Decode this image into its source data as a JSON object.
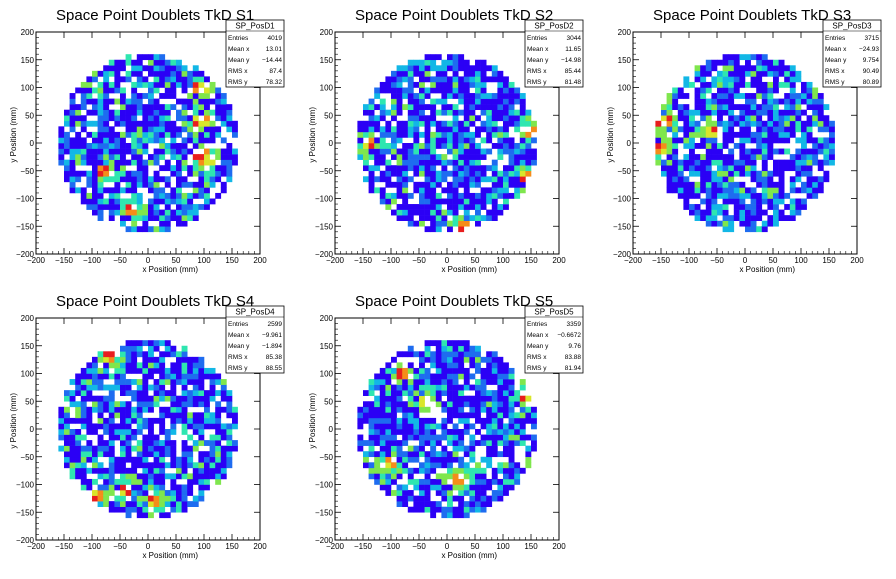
{
  "colors": {
    "background": "#ffffff",
    "frame": "#000000",
    "palette": [
      "#2b00f5",
      "#1e6cf0",
      "#12b7e6",
      "#2ee6b0",
      "#7fe64d",
      "#d9e62a",
      "#f58c1a",
      "#e81e1e"
    ]
  },
  "chart_data": [
    {
      "type": "heatmap",
      "title": "Space Point Doublets TkD S1",
      "xlabel": "x Position (mm)",
      "ylabel": "y Position (mm)",
      "xlim": [
        -200,
        200
      ],
      "ylim": [
        -200,
        200
      ],
      "bin_width": 10,
      "fill_radius": 160,
      "legend": "top-right",
      "xticks": [
        "−200",
        "−150",
        "−100",
        "−50",
        "0",
        "50",
        "100",
        "150",
        "200"
      ],
      "yticks": [
        "−200",
        "−150",
        "−100",
        "−50",
        "0",
        "50",
        "100",
        "150",
        "200"
      ],
      "stats": {
        "name": "SP_PosD1",
        "rows": [
          [
            "Entries",
            "4019"
          ],
          [
            "Mean x",
            "13.01"
          ],
          [
            "Mean y",
            "−14.44"
          ],
          [
            "RMS x",
            "87.4"
          ],
          [
            "RMS y",
            "78.32"
          ]
        ]
      },
      "hotspots": [
        {
          "x": 95,
          "y": 100
        },
        {
          "x": 95,
          "y": 40
        },
        {
          "x": 95,
          "y": -20
        },
        {
          "x": -80,
          "y": -50
        },
        {
          "x": 105,
          "y": -30
        },
        {
          "x": -30,
          "y": -120
        }
      ]
    },
    {
      "type": "heatmap",
      "title": "Space Point Doublets TkD S2",
      "xlabel": "x Position (mm)",
      "ylabel": "y Position (mm)",
      "xlim": [
        -200,
        200
      ],
      "ylim": [
        -200,
        200
      ],
      "bin_width": 10,
      "fill_radius": 160,
      "legend": "top-right",
      "xticks": [
        "−200",
        "−150",
        "−100",
        "−50",
        "0",
        "50",
        "100",
        "150",
        "200"
      ],
      "yticks": [
        "−200",
        "−150",
        "−100",
        "−50",
        "0",
        "50",
        "100",
        "150",
        "200"
      ],
      "stats": {
        "name": "SP_PosD2",
        "rows": [
          [
            "Entries",
            "3044"
          ],
          [
            "Mean x",
            "11.65"
          ],
          [
            "Mean y",
            "−14.98"
          ],
          [
            "RMS x",
            "85.44"
          ],
          [
            "RMS y",
            "81.48"
          ]
        ]
      },
      "hotspots": [
        {
          "x": 150,
          "y": 20
        },
        {
          "x": -140,
          "y": 0
        },
        {
          "x": 30,
          "y": -150
        },
        {
          "x": 140,
          "y": -60
        }
      ]
    },
    {
      "type": "heatmap",
      "title": "Space Point Doublets TkD S3",
      "xlabel": "x Position (mm)",
      "ylabel": "y Position (mm)",
      "xlim": [
        -200,
        200
      ],
      "ylim": [
        -200,
        200
      ],
      "bin_width": 10,
      "fill_radius": 160,
      "legend": "top-right",
      "xticks": [
        "−200",
        "−150",
        "−100",
        "−50",
        "0",
        "50",
        "100",
        "150",
        "200"
      ],
      "yticks": [
        "−200",
        "−150",
        "−100",
        "−50",
        "0",
        "50",
        "100",
        "150",
        "200"
      ],
      "stats": {
        "name": "SP_PosD3",
        "rows": [
          [
            "Entries",
            "3715"
          ],
          [
            "Mean x",
            "−24.93"
          ],
          [
            "Mean y",
            "9.754"
          ],
          [
            "RMS x",
            "90.49"
          ],
          [
            "RMS y",
            "80.89"
          ]
        ]
      },
      "hotspots": [
        {
          "x": -155,
          "y": -10
        },
        {
          "x": -145,
          "y": 40
        },
        {
          "x": -150,
          "y": 90
        },
        {
          "x": -60,
          "y": 20
        }
      ]
    },
    {
      "type": "heatmap",
      "title": "Space Point Doublets TkD S4",
      "xlabel": "x Position (mm)",
      "ylabel": "y Position (mm)",
      "xlim": [
        -200,
        200
      ],
      "ylim": [
        -200,
        200
      ],
      "bin_width": 10,
      "fill_radius": 160,
      "legend": "top-right",
      "xticks": [
        "−200",
        "−150",
        "−100",
        "−50",
        "0",
        "50",
        "100",
        "150",
        "200"
      ],
      "yticks": [
        "−200",
        "−150",
        "−100",
        "−50",
        "0",
        "50",
        "100",
        "150",
        "200"
      ],
      "stats": {
        "name": "SP_PosD4",
        "rows": [
          [
            "Entries",
            "2599"
          ],
          [
            "Mean x",
            "−9.961"
          ],
          [
            "Mean y",
            "−1.894"
          ],
          [
            "RMS x",
            "85.38"
          ],
          [
            "RMS y",
            "88.55"
          ]
        ]
      },
      "hotspots": [
        {
          "x": -95,
          "y": -120
        },
        {
          "x": -40,
          "y": -110
        },
        {
          "x": -70,
          "y": 130
        },
        {
          "x": 10,
          "y": -130
        }
      ]
    },
    {
      "type": "heatmap",
      "title": "Space Point Doublets TkD S5",
      "xlabel": "x Position (mm)",
      "ylabel": "y Position (mm)",
      "xlim": [
        -200,
        200
      ],
      "ylim": [
        -200,
        200
      ],
      "bin_width": 10,
      "fill_radius": 160,
      "legend": "top-right",
      "xticks": [
        "−200",
        "−150",
        "−100",
        "−50",
        "0",
        "50",
        "100",
        "150",
        "200"
      ],
      "yticks": [
        "−200",
        "−150",
        "−100",
        "−50",
        "0",
        "50",
        "100",
        "150",
        "200"
      ],
      "stats": {
        "name": "SP_PosD5",
        "rows": [
          [
            "Entries",
            "3359"
          ],
          [
            "Mean x",
            "−0.6672"
          ],
          [
            "Mean y",
            "9.76"
          ],
          [
            "RMS x",
            "83.88"
          ],
          [
            "RMS y",
            "81.94"
          ]
        ]
      },
      "hotspots": [
        {
          "x": -80,
          "y": 100
        },
        {
          "x": -40,
          "y": 50
        },
        {
          "x": 140,
          "y": 60
        },
        {
          "x": -100,
          "y": -60
        },
        {
          "x": 20,
          "y": -90
        }
      ]
    }
  ]
}
